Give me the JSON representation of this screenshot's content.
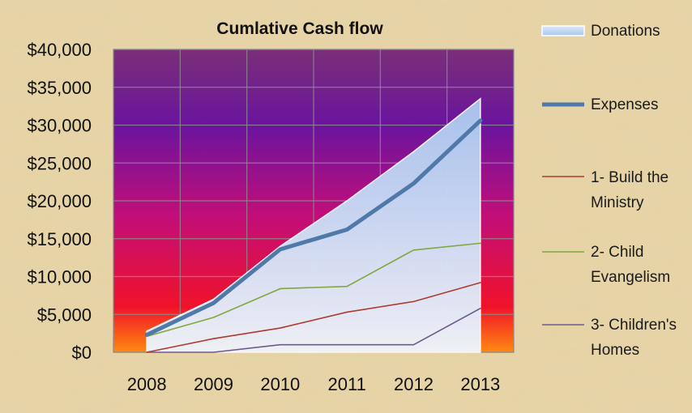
{
  "chart_data": {
    "type": "area",
    "title": "Cumlative Cash flow",
    "categories": [
      "2008",
      "2009",
      "2010",
      "2011",
      "2012",
      "2013"
    ],
    "ylim": [
      0,
      40000
    ],
    "yticks": [
      0,
      5000,
      10000,
      15000,
      20000,
      25000,
      30000,
      35000,
      40000
    ],
    "ytick_labels": [
      "$0",
      "$5,000",
      "$10,000",
      "$15,000",
      "$20,000",
      "$25,000",
      "$30,000",
      "$35,000",
      "$40,000"
    ],
    "grid": true,
    "legend_position": "right",
    "series": [
      {
        "name": "Donations",
        "kind": "area",
        "color": "#c9dcf4",
        "values": [
          2800,
          7000,
          14000,
          20000,
          26500,
          33500
        ]
      },
      {
        "name": "Expenses",
        "kind": "line",
        "color": "#4f79a8",
        "values": [
          2300,
          6500,
          13600,
          16200,
          22300,
          30600
        ]
      },
      {
        "name": "1- Build the Ministry",
        "kind": "line",
        "color": "#b03a2e",
        "values": [
          0,
          1800,
          3200,
          5300,
          6700,
          9200
        ]
      },
      {
        "name": "2- Child Evangelism",
        "kind": "line",
        "color": "#7ea83c",
        "values": [
          2100,
          4600,
          8400,
          8700,
          13500,
          14400
        ]
      },
      {
        "name": "3- Children's Homes",
        "kind": "line",
        "color": "#6b5a8e",
        "values": [
          0,
          0,
          1000,
          1000,
          1000,
          5800
        ]
      }
    ]
  }
}
